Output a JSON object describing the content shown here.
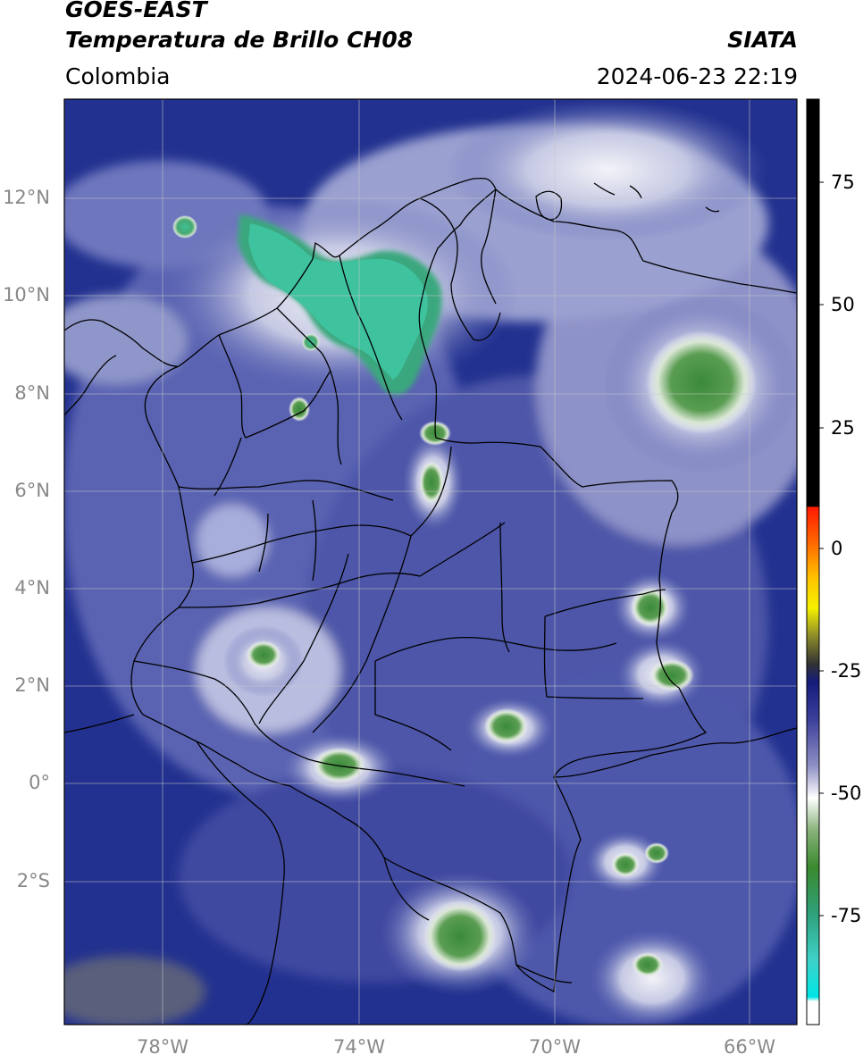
{
  "header": {
    "satellite": "GOES-EAST",
    "product": "Temperatura de Brillo CH08",
    "agency": "SIATA",
    "region": "Colombia",
    "datetime": "2024-06-23 22:19"
  },
  "map": {
    "lat_ticks": [
      "12°N",
      "10°N",
      "8°N",
      "6°N",
      "4°N",
      "2°N",
      "0°",
      "2°S"
    ],
    "lon_ticks": [
      "78°W",
      "74°W",
      "70°W",
      "66°W"
    ]
  },
  "colorbar": {
    "ticks": [
      "75",
      "50",
      "25",
      "0",
      "-25",
      "-50",
      "-75"
    ]
  },
  "colors": {
    "background_cold": "#1a2a8c",
    "mid_blue": "#5c67b4",
    "cloud_white": "#eef0f6",
    "convective_green": "#3a8a3a",
    "convective_teal": "#3fc19a",
    "border": "#000000"
  }
}
